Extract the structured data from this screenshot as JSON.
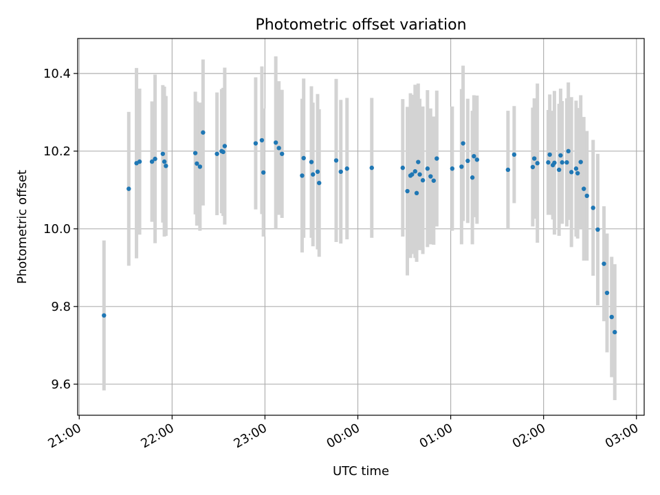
{
  "chart_data": {
    "type": "scatter",
    "title": "Photometric offset variation",
    "xlabel": "UTC time",
    "ylabel": "Photometric offset",
    "x_unit": "UTC time of day (h:mm), crossing midnight",
    "xlim": [
      "20:59",
      "03:05"
    ],
    "ylim": [
      9.52,
      10.49
    ],
    "x_ticks": [
      "21:00",
      "22:00",
      "23:00",
      "00:00",
      "01:00",
      "02:00",
      "03:00"
    ],
    "y_ticks": [
      9.6,
      9.8,
      10.0,
      10.2,
      10.4
    ],
    "y_tick_labels": [
      "9.6",
      "9.8",
      "10.0",
      "10.2",
      "10.4"
    ],
    "grid": true,
    "marker_color": "#1f77b4",
    "errorbar_color": "#d3d3d3",
    "series": [
      {
        "x": [
          "21:16",
          "21:32",
          "21:37",
          "21:39",
          "21:47",
          "21:49",
          "21:54",
          "21:55",
          "21:56",
          "22:15",
          "22:16",
          "22:18",
          "22:20",
          "22:29",
          "22:32",
          "22:33",
          "22:34",
          "22:54",
          "22:58",
          "22:59",
          "23:07",
          "23:09",
          "23:11",
          "23:24",
          "23:25",
          "23:30",
          "23:31",
          "23:34",
          "23:35",
          "23:46",
          "23:49",
          "23:53",
          "00:09",
          "00:29",
          "00:32",
          "00:34",
          "00:35",
          "00:37",
          "00:38",
          "00:39",
          "00:40",
          "00:42",
          "00:45",
          "00:47",
          "00:49",
          "00:51",
          "01:01",
          "01:07",
          "01:08",
          "01:11",
          "01:14",
          "01:15",
          "01:17",
          "01:37",
          "01:41",
          "01:53",
          "01:54",
          "01:56",
          "02:03",
          "02:04",
          "02:06",
          "02:07",
          "02:10",
          "02:11",
          "02:12",
          "02:15",
          "02:16",
          "02:18",
          "02:21",
          "02:22",
          "02:24",
          "02:26",
          "02:28",
          "02:32",
          "02:35",
          "02:39",
          "02:41",
          "02:44",
          "02:46"
        ],
        "y": [
          9.777,
          10.103,
          10.169,
          10.173,
          10.173,
          10.18,
          10.193,
          10.173,
          10.162,
          10.195,
          10.168,
          10.16,
          10.248,
          10.193,
          10.2,
          10.198,
          10.213,
          10.22,
          10.228,
          10.145,
          10.222,
          10.208,
          10.193,
          10.137,
          10.182,
          10.172,
          10.14,
          10.147,
          10.118,
          10.176,
          10.147,
          10.155,
          10.157,
          10.157,
          10.097,
          10.137,
          10.14,
          10.148,
          10.092,
          10.172,
          10.14,
          10.125,
          10.155,
          10.135,
          10.124,
          10.181,
          10.155,
          10.16,
          10.22,
          10.175,
          10.132,
          10.187,
          10.178,
          10.152,
          10.191,
          10.159,
          10.181,
          10.169,
          10.171,
          10.191,
          10.164,
          10.17,
          10.152,
          10.189,
          10.171,
          10.171,
          10.2,
          10.146,
          10.155,
          10.143,
          10.172,
          10.103,
          10.085,
          10.054,
          9.998,
          9.91,
          9.835,
          9.773,
          9.734
        ],
        "err": [
          0.193,
          0.198,
          0.245,
          0.188,
          0.155,
          0.217,
          0.177,
          0.193,
          0.18,
          0.158,
          0.16,
          0.165,
          0.188,
          0.158,
          0.16,
          0.165,
          0.202,
          0.17,
          0.19,
          0.165,
          0.222,
          0.172,
          0.165,
          0.198,
          0.205,
          0.195,
          0.185,
          0.2,
          0.19,
          0.21,
          0.185,
          0.182,
          0.18,
          0.177,
          0.217,
          0.212,
          0.205,
          0.223,
          0.177,
          0.202,
          0.195,
          0.19,
          0.202,
          0.175,
          0.165,
          0.175,
          0.16,
          0.2,
          0.2,
          0.16,
          0.172,
          0.157,
          0.165,
          0.152,
          0.125,
          0.153,
          0.155,
          0.205,
          0.135,
          0.155,
          0.14,
          0.185,
          0.17,
          0.172,
          0.158,
          0.165,
          0.177,
          0.193,
          0.175,
          0.168,
          0.172,
          0.185,
          0.167,
          0.175,
          0.195,
          0.148,
          0.153,
          0.155,
          0.175
        ]
      }
    ]
  }
}
